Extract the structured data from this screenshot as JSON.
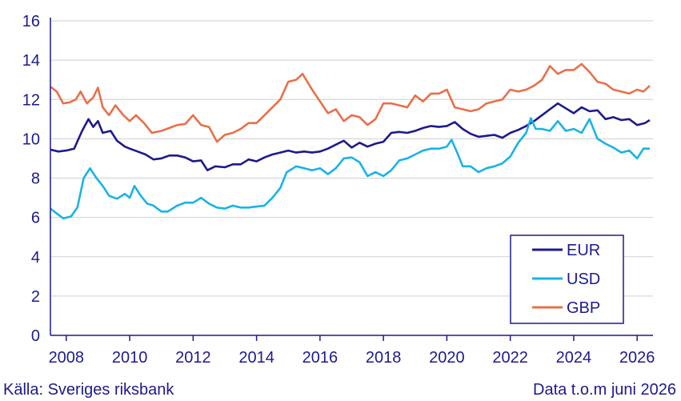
{
  "footer": {
    "source": "Källa: Sveriges riksbank",
    "note": "Data t.o.m juni 2026"
  },
  "chart_data": {
    "type": "line",
    "title": "",
    "xlabel": "",
    "ylabel": "",
    "xlim": [
      2007.5,
      2026.5
    ],
    "ylim": [
      0,
      16
    ],
    "x_ticks": [
      2008,
      2010,
      2012,
      2014,
      2016,
      2018,
      2020,
      2022,
      2024,
      2026
    ],
    "y_ticks": [
      0,
      2,
      4,
      6,
      8,
      10,
      12,
      14,
      16
    ],
    "grid": "horizontal",
    "legend_position": "bottom-right",
    "series": [
      {
        "name": "EUR",
        "color": "#1e1a8c",
        "points": [
          [
            2007.5,
            9.45
          ],
          [
            2007.75,
            9.35
          ],
          [
            2008.0,
            9.4
          ],
          [
            2008.25,
            9.5
          ],
          [
            2008.5,
            10.4
          ],
          [
            2008.7,
            11.0
          ],
          [
            2008.85,
            10.6
          ],
          [
            2009.0,
            10.9
          ],
          [
            2009.15,
            10.3
          ],
          [
            2009.4,
            10.4
          ],
          [
            2009.6,
            9.9
          ],
          [
            2009.85,
            9.6
          ],
          [
            2010.0,
            9.5
          ],
          [
            2010.25,
            9.35
          ],
          [
            2010.5,
            9.2
          ],
          [
            2010.75,
            8.95
          ],
          [
            2011.0,
            9.0
          ],
          [
            2011.25,
            9.15
          ],
          [
            2011.5,
            9.15
          ],
          [
            2011.75,
            9.05
          ],
          [
            2012.0,
            8.85
          ],
          [
            2012.25,
            8.9
          ],
          [
            2012.45,
            8.4
          ],
          [
            2012.7,
            8.6
          ],
          [
            2013.0,
            8.55
          ],
          [
            2013.25,
            8.7
          ],
          [
            2013.5,
            8.7
          ],
          [
            2013.75,
            8.95
          ],
          [
            2014.0,
            8.85
          ],
          [
            2014.25,
            9.05
          ],
          [
            2014.5,
            9.2
          ],
          [
            2014.75,
            9.3
          ],
          [
            2015.0,
            9.4
          ],
          [
            2015.25,
            9.3
          ],
          [
            2015.5,
            9.35
          ],
          [
            2015.75,
            9.3
          ],
          [
            2016.0,
            9.35
          ],
          [
            2016.25,
            9.5
          ],
          [
            2016.5,
            9.7
          ],
          [
            2016.75,
            9.9
          ],
          [
            2017.0,
            9.55
          ],
          [
            2017.25,
            9.8
          ],
          [
            2017.5,
            9.6
          ],
          [
            2017.75,
            9.75
          ],
          [
            2018.0,
            9.85
          ],
          [
            2018.25,
            10.3
          ],
          [
            2018.5,
            10.35
          ],
          [
            2018.75,
            10.3
          ],
          [
            2019.0,
            10.4
          ],
          [
            2019.25,
            10.55
          ],
          [
            2019.5,
            10.65
          ],
          [
            2019.75,
            10.6
          ],
          [
            2020.0,
            10.65
          ],
          [
            2020.25,
            10.85
          ],
          [
            2020.5,
            10.5
          ],
          [
            2020.75,
            10.25
          ],
          [
            2021.0,
            10.1
          ],
          [
            2021.25,
            10.15
          ],
          [
            2021.5,
            10.2
          ],
          [
            2021.75,
            10.05
          ],
          [
            2022.0,
            10.3
          ],
          [
            2022.25,
            10.45
          ],
          [
            2022.5,
            10.65
          ],
          [
            2022.75,
            10.9
          ],
          [
            2023.0,
            11.2
          ],
          [
            2023.25,
            11.5
          ],
          [
            2023.5,
            11.8
          ],
          [
            2023.75,
            11.55
          ],
          [
            2024.0,
            11.3
          ],
          [
            2024.25,
            11.6
          ],
          [
            2024.5,
            11.4
          ],
          [
            2024.75,
            11.45
          ],
          [
            2025.0,
            11.0
          ],
          [
            2025.25,
            11.1
          ],
          [
            2025.5,
            10.95
          ],
          [
            2025.75,
            11.0
          ],
          [
            2026.0,
            10.7
          ],
          [
            2026.25,
            10.8
          ],
          [
            2026.4,
            10.95
          ]
        ]
      },
      {
        "name": "USD",
        "color": "#1ab3e6",
        "points": [
          [
            2007.5,
            6.45
          ],
          [
            2007.7,
            6.2
          ],
          [
            2007.9,
            5.95
          ],
          [
            2008.15,
            6.05
          ],
          [
            2008.35,
            6.5
          ],
          [
            2008.55,
            8.0
          ],
          [
            2008.75,
            8.5
          ],
          [
            2008.95,
            8.0
          ],
          [
            2009.15,
            7.6
          ],
          [
            2009.35,
            7.1
          ],
          [
            2009.6,
            6.95
          ],
          [
            2009.85,
            7.2
          ],
          [
            2010.0,
            7.0
          ],
          [
            2010.15,
            7.6
          ],
          [
            2010.35,
            7.1
          ],
          [
            2010.55,
            6.7
          ],
          [
            2010.75,
            6.6
          ],
          [
            2011.0,
            6.3
          ],
          [
            2011.2,
            6.3
          ],
          [
            2011.5,
            6.6
          ],
          [
            2011.75,
            6.75
          ],
          [
            2012.0,
            6.75
          ],
          [
            2012.25,
            7.0
          ],
          [
            2012.5,
            6.7
          ],
          [
            2012.75,
            6.5
          ],
          [
            2013.0,
            6.45
          ],
          [
            2013.25,
            6.6
          ],
          [
            2013.5,
            6.5
          ],
          [
            2013.75,
            6.5
          ],
          [
            2014.0,
            6.55
          ],
          [
            2014.25,
            6.6
          ],
          [
            2014.5,
            7.0
          ],
          [
            2014.75,
            7.5
          ],
          [
            2014.95,
            8.3
          ],
          [
            2015.25,
            8.6
          ],
          [
            2015.5,
            8.5
          ],
          [
            2015.75,
            8.4
          ],
          [
            2016.0,
            8.5
          ],
          [
            2016.25,
            8.2
          ],
          [
            2016.5,
            8.5
          ],
          [
            2016.75,
            9.0
          ],
          [
            2017.0,
            9.05
          ],
          [
            2017.25,
            8.8
          ],
          [
            2017.5,
            8.1
          ],
          [
            2017.75,
            8.3
          ],
          [
            2018.0,
            8.1
          ],
          [
            2018.25,
            8.4
          ],
          [
            2018.5,
            8.9
          ],
          [
            2018.75,
            9.0
          ],
          [
            2019.0,
            9.2
          ],
          [
            2019.25,
            9.4
          ],
          [
            2019.5,
            9.5
          ],
          [
            2019.75,
            9.5
          ],
          [
            2020.0,
            9.6
          ],
          [
            2020.15,
            9.95
          ],
          [
            2020.35,
            9.2
          ],
          [
            2020.5,
            8.6
          ],
          [
            2020.75,
            8.6
          ],
          [
            2021.0,
            8.3
          ],
          [
            2021.25,
            8.5
          ],
          [
            2021.5,
            8.6
          ],
          [
            2021.75,
            8.75
          ],
          [
            2022.0,
            9.1
          ],
          [
            2022.25,
            9.8
          ],
          [
            2022.5,
            10.3
          ],
          [
            2022.65,
            11.05
          ],
          [
            2022.8,
            10.5
          ],
          [
            2023.0,
            10.5
          ],
          [
            2023.25,
            10.4
          ],
          [
            2023.5,
            10.9
          ],
          [
            2023.75,
            10.4
          ],
          [
            2024.0,
            10.5
          ],
          [
            2024.25,
            10.3
          ],
          [
            2024.5,
            11.0
          ],
          [
            2024.75,
            10.0
          ],
          [
            2025.0,
            9.75
          ],
          [
            2025.25,
            9.55
          ],
          [
            2025.5,
            9.3
          ],
          [
            2025.75,
            9.4
          ],
          [
            2026.0,
            9.0
          ],
          [
            2026.2,
            9.5
          ],
          [
            2026.4,
            9.5
          ]
        ]
      },
      {
        "name": "GBP",
        "color": "#e8704a",
        "points": [
          [
            2007.5,
            12.65
          ],
          [
            2007.7,
            12.4
          ],
          [
            2007.9,
            11.8
          ],
          [
            2008.1,
            11.85
          ],
          [
            2008.3,
            12.0
          ],
          [
            2008.45,
            12.4
          ],
          [
            2008.65,
            11.8
          ],
          [
            2008.85,
            12.1
          ],
          [
            2009.0,
            12.6
          ],
          [
            2009.15,
            11.6
          ],
          [
            2009.35,
            11.2
          ],
          [
            2009.55,
            11.7
          ],
          [
            2009.8,
            11.2
          ],
          [
            2010.0,
            10.9
          ],
          [
            2010.2,
            11.2
          ],
          [
            2010.45,
            10.8
          ],
          [
            2010.7,
            10.3
          ],
          [
            2011.0,
            10.4
          ],
          [
            2011.25,
            10.55
          ],
          [
            2011.5,
            10.7
          ],
          [
            2011.75,
            10.75
          ],
          [
            2012.0,
            11.2
          ],
          [
            2012.25,
            10.7
          ],
          [
            2012.5,
            10.6
          ],
          [
            2012.75,
            9.85
          ],
          [
            2013.0,
            10.2
          ],
          [
            2013.25,
            10.3
          ],
          [
            2013.5,
            10.5
          ],
          [
            2013.75,
            10.8
          ],
          [
            2014.0,
            10.8
          ],
          [
            2014.25,
            11.2
          ],
          [
            2014.5,
            11.6
          ],
          [
            2014.75,
            12.0
          ],
          [
            2015.0,
            12.9
          ],
          [
            2015.25,
            13.0
          ],
          [
            2015.45,
            13.3
          ],
          [
            2015.75,
            12.5
          ],
          [
            2016.0,
            11.9
          ],
          [
            2016.25,
            11.3
          ],
          [
            2016.5,
            11.5
          ],
          [
            2016.75,
            10.9
          ],
          [
            2017.0,
            11.2
          ],
          [
            2017.25,
            11.1
          ],
          [
            2017.5,
            10.7
          ],
          [
            2017.75,
            11.0
          ],
          [
            2018.0,
            11.8
          ],
          [
            2018.25,
            11.8
          ],
          [
            2018.5,
            11.7
          ],
          [
            2018.75,
            11.6
          ],
          [
            2019.0,
            12.2
          ],
          [
            2019.25,
            11.9
          ],
          [
            2019.5,
            12.3
          ],
          [
            2019.75,
            12.3
          ],
          [
            2020.0,
            12.5
          ],
          [
            2020.25,
            11.6
          ],
          [
            2020.5,
            11.5
          ],
          [
            2020.75,
            11.4
          ],
          [
            2021.0,
            11.5
          ],
          [
            2021.25,
            11.8
          ],
          [
            2021.5,
            11.9
          ],
          [
            2021.75,
            12.0
          ],
          [
            2022.0,
            12.5
          ],
          [
            2022.25,
            12.4
          ],
          [
            2022.5,
            12.5
          ],
          [
            2022.75,
            12.7
          ],
          [
            2023.0,
            13.0
          ],
          [
            2023.25,
            13.7
          ],
          [
            2023.5,
            13.3
          ],
          [
            2023.75,
            13.5
          ],
          [
            2024.0,
            13.5
          ],
          [
            2024.25,
            13.8
          ],
          [
            2024.5,
            13.4
          ],
          [
            2024.75,
            12.9
          ],
          [
            2025.0,
            12.8
          ],
          [
            2025.25,
            12.5
          ],
          [
            2025.5,
            12.4
          ],
          [
            2025.75,
            12.3
          ],
          [
            2026.0,
            12.5
          ],
          [
            2026.2,
            12.4
          ],
          [
            2026.4,
            12.7
          ]
        ]
      }
    ]
  }
}
